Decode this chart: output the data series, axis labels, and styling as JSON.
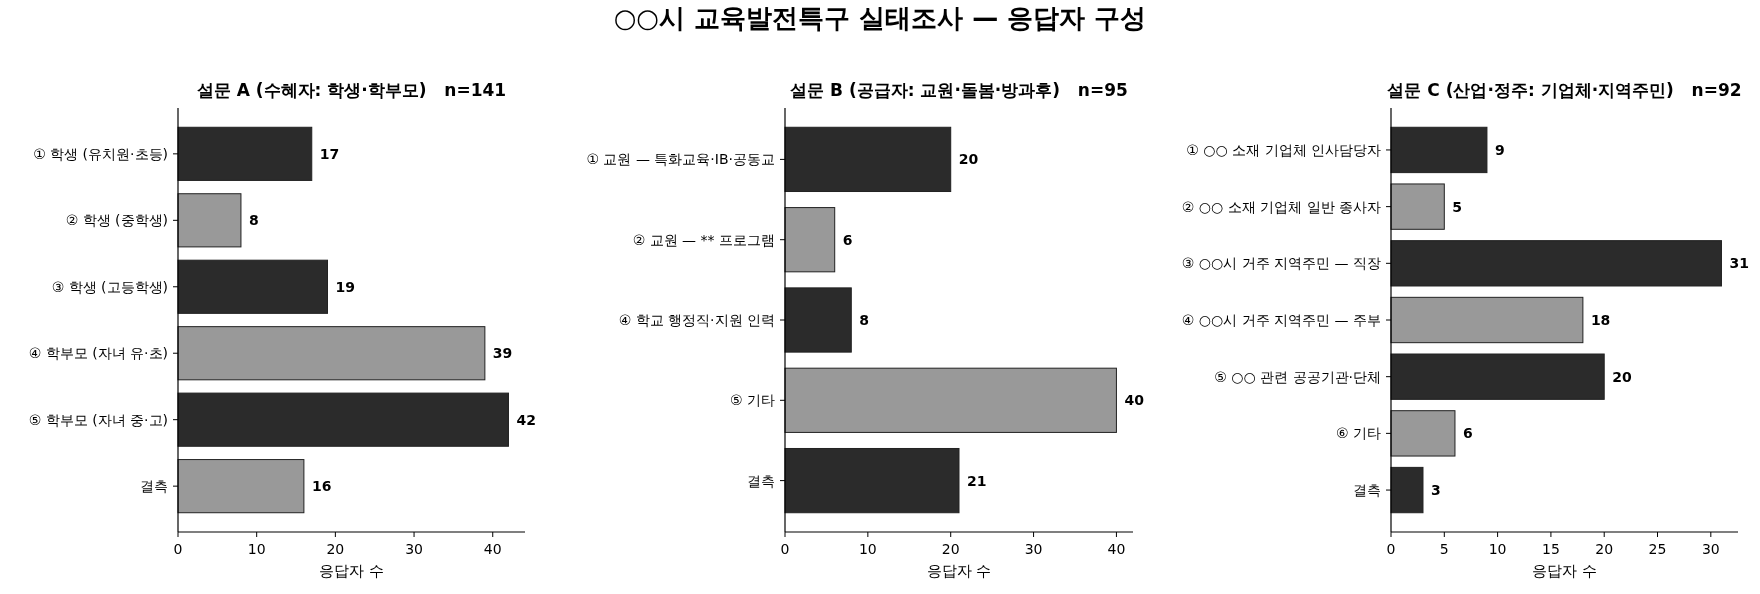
{
  "chart_data": [
    {
      "type": "other",
      "title": "○○시 교육발전특구 실태조사 — 응답자 구성"
    },
    {
      "type": "bar",
      "orientation": "horizontal",
      "title": "설문 A (수혜자: 학생·학부모)   n=141",
      "xlabel": "응답자 수",
      "categories": [
        "① 학생 (유치원·초등)",
        "② 학생 (중학생)",
        "③ 학생 (고등학생)",
        "④ 학부모 (자녀 유·초)",
        "⑤ 학부모 (자녀 중·고)",
        "결측"
      ],
      "values": [
        17,
        8,
        19,
        39,
        42,
        16
      ],
      "colors": [
        "#2b2b2b",
        "#999999",
        "#2b2b2b",
        "#999999",
        "#2b2b2b",
        "#999999"
      ],
      "xlim": [
        0,
        44.1
      ],
      "xticks": [
        0,
        10,
        20,
        30,
        40
      ],
      "data_labels": true
    },
    {
      "type": "bar",
      "orientation": "horizontal",
      "title": "설문 B (공급자: 교원·돌봄·방과후)   n=95",
      "xlabel": "응답자 수",
      "categories": [
        "① 교원 — 특화교육·IB·공동교",
        "② 교원 — ** 프로그램",
        "④ 학교 행정직·지원 인력",
        "⑤ 기타",
        "결측"
      ],
      "values": [
        20,
        6,
        8,
        40,
        21
      ],
      "colors": [
        "#2b2b2b",
        "#999999",
        "#2b2b2b",
        "#999999",
        "#2b2b2b"
      ],
      "xlim": [
        0,
        42
      ],
      "xticks": [
        0,
        10,
        20,
        30,
        40
      ],
      "data_labels": true
    },
    {
      "type": "bar",
      "orientation": "horizontal",
      "title": "설문 C (산업·정주: 기업체·지역주민)   n=92",
      "xlabel": "응답자 수",
      "categories": [
        "① ○○ 소재 기업체 인사담당자",
        "② ○○ 소재 기업체 일반 종사자",
        "③ ○○시 거주 지역주민 — 직장",
        "④ ○○시 거주 지역주민 — 주부",
        "⑤ ○○ 관련 공공기관·단체",
        "⑥ 기타",
        "결측"
      ],
      "values": [
        9,
        5,
        31,
        18,
        20,
        6,
        3
      ],
      "colors": [
        "#2b2b2b",
        "#999999",
        "#2b2b2b",
        "#999999",
        "#2b2b2b",
        "#999999",
        "#2b2b2b"
      ],
      "xlim": [
        0,
        32.55
      ],
      "xticks": [
        0,
        5,
        10,
        15,
        20,
        25,
        30
      ],
      "data_labels": true
    }
  ]
}
